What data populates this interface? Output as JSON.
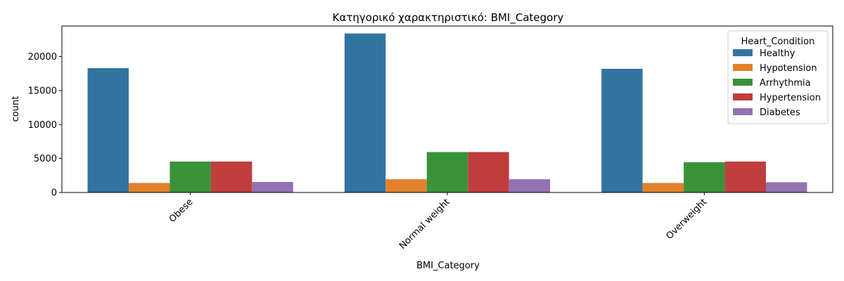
{
  "chart_data": {
    "type": "bar",
    "title": "Κατηγορικό χαρακτηριστικό: BMI_Category",
    "xlabel": "BMI_Category",
    "ylabel": "count",
    "categories": [
      "Obese",
      "Normal weight",
      "Overweight"
    ],
    "ylim": [
      0,
      24500
    ],
    "yticks": [
      0,
      5000,
      10000,
      15000,
      20000
    ],
    "grid": false,
    "legend": {
      "title": "Heart_Condition",
      "placement": "top-right"
    },
    "series": [
      {
        "name": "Healthy",
        "color": "#3274a1",
        "values": [
          18300,
          23400,
          18200
        ]
      },
      {
        "name": "Hypotension",
        "color": "#e1812c",
        "values": [
          1400,
          1950,
          1400
        ]
      },
      {
        "name": "Arrhythmia",
        "color": "#3a923a",
        "values": [
          4550,
          5950,
          4450
        ]
      },
      {
        "name": "Hypertension",
        "color": "#c03d3e",
        "values": [
          4550,
          5950,
          4550
        ]
      },
      {
        "name": "Diabetes",
        "color": "#9372b2",
        "values": [
          1550,
          1950,
          1500
        ]
      }
    ]
  }
}
